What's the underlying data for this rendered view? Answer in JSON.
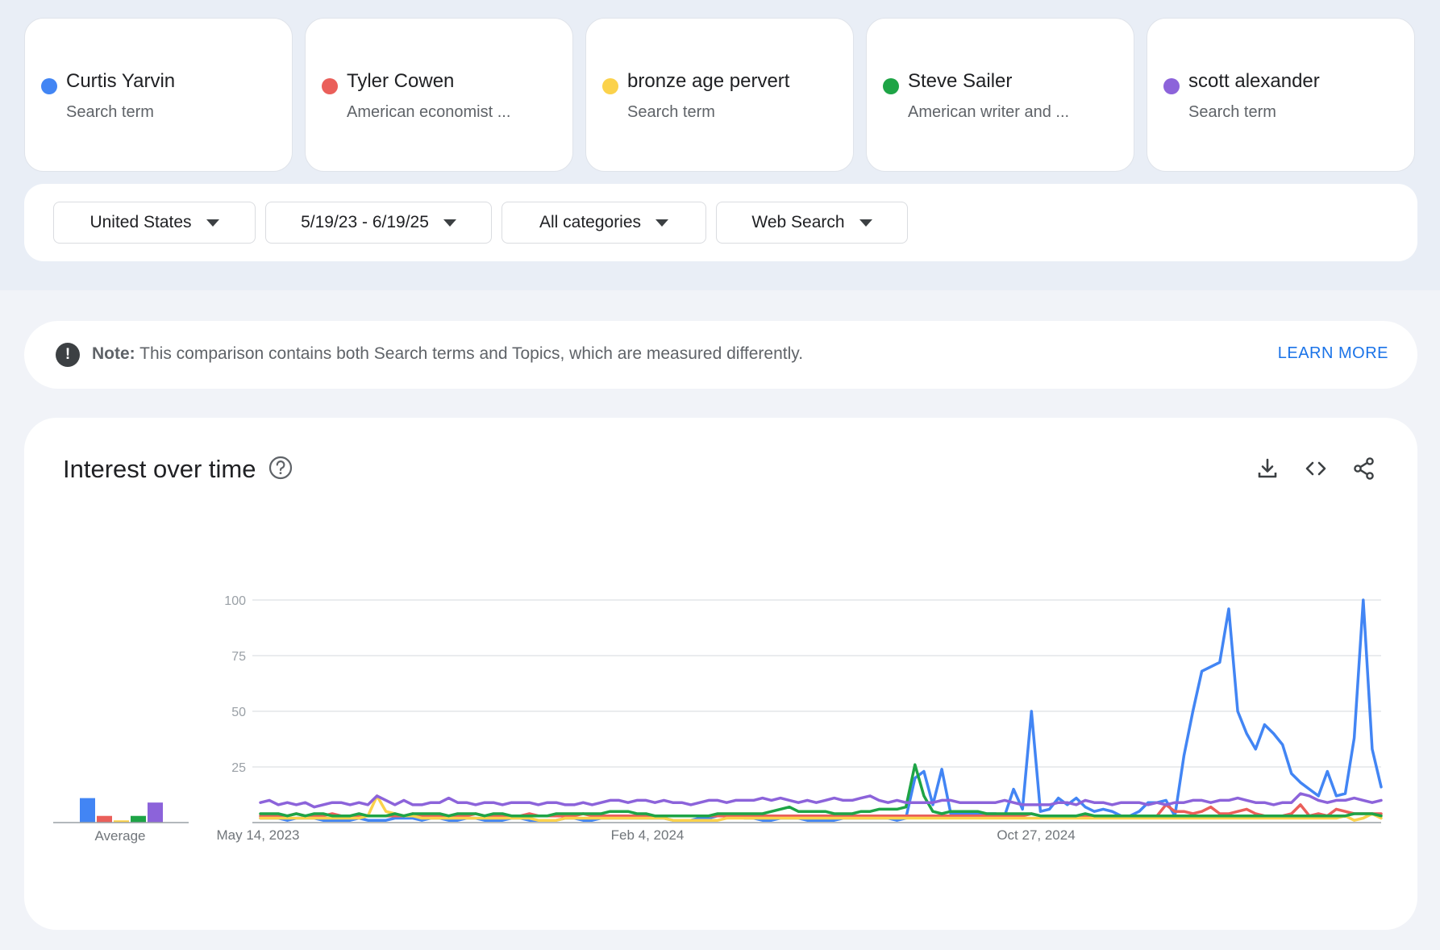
{
  "terms": [
    {
      "name": "Curtis Yarvin",
      "subtitle": "Search term",
      "color": "#4285f4"
    },
    {
      "name": "Tyler Cowen",
      "subtitle": "American economist ...",
      "color": "#ea5f5a"
    },
    {
      "name": "bronze age pervert",
      "subtitle": "Search term",
      "color": "#fbd24b"
    },
    {
      "name": "Steve Sailer",
      "subtitle": "American writer and ...",
      "color": "#1ea446"
    },
    {
      "name": "scott alexander",
      "subtitle": "Search term",
      "color": "#8c63da"
    }
  ],
  "filters": {
    "region": "United States",
    "date_range": "5/19/23 - 6/19/25",
    "category": "All categories",
    "search_type": "Web Search"
  },
  "note": {
    "icon": "exclamation-icon",
    "label": "Note:",
    "text": "This comparison contains both Search terms and Topics, which are measured differently.",
    "link": "LEARN MORE"
  },
  "chart_card": {
    "title": "Interest over time",
    "icons": [
      "help-icon",
      "download-icon",
      "embed-code-icon",
      "share-icon"
    ]
  },
  "chart_data": {
    "type": "line",
    "title": "Interest over time",
    "xlabel": "",
    "ylabel": "",
    "ylim": [
      0,
      100
    ],
    "yticks": [
      25,
      50,
      75,
      100
    ],
    "x_tick_labels": [
      "May 14, 2023",
      "Feb 4, 2024",
      "Oct 27, 2024"
    ],
    "grid": true,
    "average_label": "Average",
    "averages": [
      {
        "series": "Curtis Yarvin",
        "value": 11
      },
      {
        "series": "Tyler Cowen",
        "value": 3
      },
      {
        "series": "bronze age pervert",
        "value": 1
      },
      {
        "series": "Steve Sailer",
        "value": 3
      },
      {
        "series": "scott alexander",
        "value": 9
      }
    ],
    "series": [
      {
        "name": "Curtis Yarvin",
        "color": "#4285f4",
        "values": [
          2,
          2,
          2,
          1,
          2,
          2,
          2,
          1,
          1,
          1,
          1,
          2,
          1,
          1,
          1,
          2,
          2,
          2,
          1,
          2,
          2,
          1,
          1,
          2,
          2,
          1,
          1,
          1,
          2,
          2,
          1,
          1,
          1,
          1,
          2,
          2,
          1,
          1,
          2,
          2,
          2,
          2,
          2,
          2,
          2,
          2,
          1,
          1,
          1,
          2,
          2,
          3,
          3,
          3,
          2,
          2,
          1,
          1,
          2,
          2,
          2,
          1,
          1,
          1,
          1,
          2,
          2,
          2,
          2,
          2,
          2,
          1,
          2,
          20,
          23,
          8,
          24,
          4,
          4,
          4,
          4,
          4,
          4,
          3,
          15,
          6,
          50,
          5,
          6,
          11,
          8,
          11,
          7,
          5,
          6,
          5,
          3,
          3,
          5,
          9,
          9,
          10,
          3,
          30,
          50,
          68,
          70,
          72,
          96,
          50,
          40,
          33,
          44,
          40,
          35,
          22,
          18,
          15,
          12,
          23,
          12,
          13,
          38,
          100,
          33,
          16
        ]
      },
      {
        "name": "Tyler Cowen",
        "color": "#ea5f5a",
        "values": [
          3,
          3,
          3,
          3,
          4,
          3,
          3,
          3,
          4,
          3,
          3,
          3,
          3,
          3,
          3,
          3,
          3,
          4,
          3,
          3,
          3,
          3,
          3,
          3,
          4,
          3,
          3,
          3,
          3,
          3,
          4,
          3,
          3,
          3,
          3,
          3,
          4,
          3,
          3,
          3,
          3,
          3,
          3,
          3,
          3,
          3,
          3,
          3,
          3,
          3,
          3,
          3,
          3,
          3,
          3,
          3,
          3,
          3,
          3,
          3,
          3,
          3,
          3,
          3,
          3,
          3,
          3,
          3,
          3,
          3,
          3,
          3,
          3,
          3,
          3,
          3,
          3,
          3,
          3,
          3,
          3,
          3,
          3,
          3,
          3,
          3,
          4,
          3,
          3,
          3,
          3,
          3,
          3,
          3,
          3,
          3,
          3,
          3,
          3,
          3,
          3,
          8,
          5,
          5,
          4,
          5,
          7,
          4,
          4,
          5,
          6,
          4,
          3,
          3,
          3,
          4,
          8,
          3,
          4,
          3,
          6,
          5,
          4,
          4,
          4,
          4
        ]
      },
      {
        "name": "bronze age pervert",
        "color": "#fbd24b",
        "values": [
          2,
          2,
          2,
          2,
          2,
          2,
          2,
          2,
          2,
          2,
          2,
          2,
          3,
          12,
          5,
          4,
          3,
          3,
          2,
          2,
          2,
          2,
          2,
          2,
          2,
          2,
          2,
          2,
          2,
          2,
          2,
          1,
          1,
          1,
          2,
          2,
          2,
          2,
          2,
          2,
          2,
          2,
          2,
          2,
          2,
          2,
          1,
          1,
          1,
          1,
          1,
          1,
          2,
          2,
          2,
          2,
          2,
          2,
          2,
          2,
          2,
          2,
          2,
          2,
          2,
          2,
          2,
          2,
          2,
          2,
          2,
          2,
          2,
          2,
          2,
          2,
          2,
          2,
          2,
          2,
          2,
          2,
          2,
          2,
          2,
          2,
          2,
          2,
          2,
          2,
          2,
          2,
          2,
          2,
          2,
          2,
          2,
          2,
          2,
          2,
          2,
          2,
          2,
          2,
          2,
          2,
          2,
          2,
          2,
          2,
          2,
          2,
          2,
          2,
          2,
          2,
          2,
          2,
          2,
          2,
          2,
          3,
          1,
          2,
          4,
          2
        ]
      },
      {
        "name": "Steve Sailer",
        "color": "#1ea446",
        "values": [
          4,
          4,
          4,
          3,
          4,
          3,
          4,
          4,
          3,
          3,
          3,
          4,
          3,
          3,
          3,
          4,
          3,
          4,
          4,
          4,
          4,
          3,
          4,
          4,
          4,
          3,
          4,
          4,
          3,
          3,
          3,
          3,
          3,
          4,
          4,
          4,
          4,
          4,
          4,
          5,
          5,
          5,
          4,
          4,
          3,
          3,
          3,
          3,
          3,
          3,
          3,
          4,
          4,
          4,
          4,
          4,
          4,
          5,
          6,
          7,
          5,
          5,
          5,
          5,
          4,
          4,
          4,
          5,
          5,
          6,
          6,
          6,
          7,
          26,
          12,
          5,
          4,
          5,
          5,
          5,
          5,
          4,
          4,
          4,
          4,
          4,
          4,
          3,
          3,
          3,
          3,
          3,
          4,
          3,
          3,
          3,
          3,
          3,
          3,
          3,
          3,
          3,
          3,
          3,
          3,
          3,
          3,
          3,
          3,
          3,
          3,
          3,
          3,
          3,
          3,
          3,
          3,
          3,
          3,
          3,
          3,
          3,
          4,
          4,
          4,
          3
        ]
      },
      {
        "name": "scott alexander",
        "color": "#8c63da",
        "values": [
          9,
          10,
          8,
          9,
          8,
          9,
          7,
          8,
          9,
          9,
          8,
          9,
          8,
          12,
          10,
          8,
          10,
          8,
          8,
          9,
          9,
          11,
          9,
          9,
          8,
          9,
          9,
          8,
          9,
          9,
          9,
          8,
          9,
          9,
          8,
          8,
          9,
          8,
          9,
          10,
          10,
          9,
          10,
          10,
          9,
          10,
          9,
          9,
          8,
          9,
          10,
          10,
          9,
          10,
          10,
          10,
          11,
          10,
          11,
          10,
          9,
          10,
          9,
          10,
          11,
          10,
          10,
          11,
          12,
          10,
          9,
          10,
          9,
          9,
          9,
          9,
          10,
          10,
          9,
          9,
          9,
          9,
          9,
          10,
          9,
          8,
          8,
          8,
          8,
          9,
          9,
          8,
          10,
          9,
          9,
          8,
          9,
          9,
          9,
          8,
          9,
          8,
          9,
          9,
          10,
          10,
          9,
          10,
          10,
          11,
          10,
          9,
          9,
          8,
          9,
          9,
          13,
          12,
          10,
          9,
          10,
          10,
          11,
          10,
          9,
          10
        ]
      }
    ]
  }
}
